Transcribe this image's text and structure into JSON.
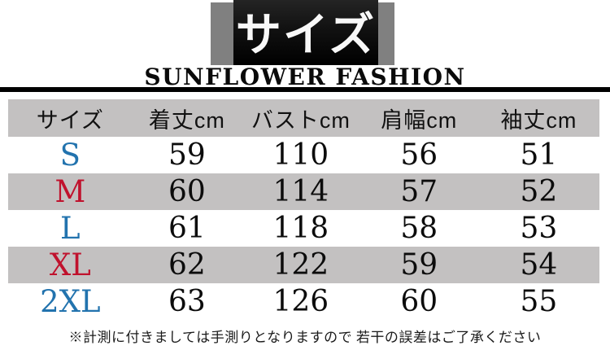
{
  "ui": {
    "banner_title": "サイズ",
    "brand_name": "SUNFLOWER FASHION",
    "note": "※計測に付きましては手測りとなりますので 若干の誤差はご了承ください",
    "colors": {
      "accent_blue": "#2273ae",
      "accent_red": "#c0122d",
      "row_gray": "#c3c1c1",
      "banner_gray": "#808080",
      "banner_black": "#000000"
    }
  },
  "chart_data": {
    "type": "table",
    "title": "サイズ",
    "columns": [
      "サイズ",
      "着丈cm",
      "バストcm",
      "肩幅cm",
      "袖丈cm"
    ],
    "rows": [
      [
        "S",
        59,
        110,
        56,
        51
      ],
      [
        "M",
        60,
        114,
        57,
        52
      ],
      [
        "L",
        61,
        118,
        58,
        53
      ],
      [
        "XL",
        62,
        122,
        59,
        54
      ],
      [
        "2XL",
        63,
        126,
        60,
        55
      ]
    ],
    "row_label_colors": [
      "blue",
      "red",
      "blue",
      "red",
      "blue"
    ],
    "layout": "header row gray, body rows alternate white/gray"
  }
}
